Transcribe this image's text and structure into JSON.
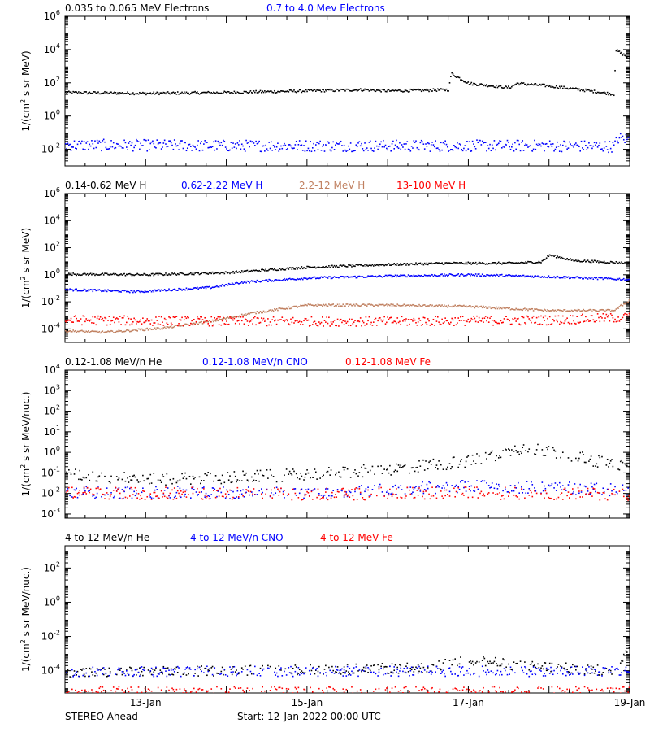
{
  "footer": {
    "left": "STEREO Ahead",
    "center": "Start: 12-Jan-2022 00:00 UTC"
  },
  "x_tick_labels": [
    "13-Jan",
    "15-Jan",
    "17-Jan",
    "19-Jan"
  ],
  "chart_data": [
    {
      "type": "scatter",
      "ylabel": "1/(cm^2 s sr MeV)",
      "log": true,
      "ylim_exp": [
        -3,
        6
      ],
      "yticks": [
        {
          "exp": -2,
          "label": "10^-2"
        },
        {
          "exp": 0,
          "label": "10^0"
        },
        {
          "exp": 2,
          "label": "10^2"
        },
        {
          "exp": 4,
          "label": "10^4"
        },
        {
          "exp": 6,
          "label": "10^6"
        }
      ],
      "xlim_days": [
        0,
        7
      ],
      "series": [
        {
          "name": "0.035 to 0.065 MeV Electrons",
          "color": "#000000",
          "points": [
            [
              0,
              1.45
            ],
            [
              1,
              1.4
            ],
            [
              2,
              1.45
            ],
            [
              3,
              1.55
            ],
            [
              3.7,
              1.62
            ],
            [
              4,
              1.55
            ],
            [
              4.6,
              1.6
            ],
            [
              4.75,
              1.62
            ],
            [
              4.78,
              2.6
            ],
            [
              5,
              2.0
            ],
            [
              5.5,
              1.75
            ],
            [
              5.6,
              2.0
            ],
            [
              6,
              1.85
            ],
            [
              6.5,
              1.55
            ],
            [
              6.8,
              1.35
            ],
            [
              6.82,
              4.0
            ],
            [
              7,
              3.5
            ]
          ]
        },
        {
          "name": "0.7 to 4.0 Mev Electrons",
          "color": "#0000ff",
          "points": [
            [
              0,
              -1.7
            ],
            [
              2,
              -1.75
            ],
            [
              4,
              -1.75
            ],
            [
              6,
              -1.75
            ],
            [
              6.8,
              -1.8
            ],
            [
              6.85,
              -1.3
            ],
            [
              7,
              -1.35
            ]
          ]
        }
      ]
    },
    {
      "type": "scatter",
      "ylabel": "1/(cm^2 s sr MeV)",
      "log": true,
      "ylim_exp": [
        -5,
        6
      ],
      "yticks": [
        {
          "exp": -4,
          "label": "10^-4"
        },
        {
          "exp": -2,
          "label": "10^-2"
        },
        {
          "exp": 0,
          "label": "10^0"
        },
        {
          "exp": 2,
          "label": "10^2"
        },
        {
          "exp": 4,
          "label": "10^4"
        },
        {
          "exp": 6,
          "label": "10^6"
        }
      ],
      "xlim_days": [
        0,
        7
      ],
      "series": [
        {
          "name": "0.14-0.62 MeV H",
          "color": "#000000",
          "points": [
            [
              0,
              0.1
            ],
            [
              1,
              0.05
            ],
            [
              2,
              0.2
            ],
            [
              2.5,
              0.4
            ],
            [
              3,
              0.6
            ],
            [
              4,
              0.8
            ],
            [
              4.7,
              0.9
            ],
            [
              5.5,
              0.9
            ],
            [
              5.9,
              1.0
            ],
            [
              6.0,
              1.5
            ],
            [
              6.3,
              1.1
            ],
            [
              7,
              0.9
            ]
          ]
        },
        {
          "name": "0.62-2.22 MeV H",
          "color": "#0000ff",
          "points": [
            [
              0,
              -1.05
            ],
            [
              0.9,
              -1.2
            ],
            [
              1.8,
              -0.9
            ],
            [
              2.2,
              -0.5
            ],
            [
              3,
              -0.2
            ],
            [
              4,
              -0.05
            ],
            [
              5,
              0.05
            ],
            [
              6,
              -0.1
            ],
            [
              7,
              -0.3
            ]
          ]
        },
        {
          "name": "2.2-12 MeV H",
          "color": "#c08060",
          "points": [
            [
              0,
              -4.1
            ],
            [
              0.5,
              -4.2
            ],
            [
              1.2,
              -3.9
            ],
            [
              1.8,
              -3.4
            ],
            [
              2.3,
              -2.8
            ],
            [
              3,
              -2.2
            ],
            [
              4,
              -2.2
            ],
            [
              5,
              -2.3
            ],
            [
              6,
              -2.6
            ],
            [
              6.8,
              -2.6
            ],
            [
              7,
              -1.8
            ]
          ]
        },
        {
          "name": "13-100 MeV H",
          "color": "#ff0000",
          "points": [
            [
              0,
              -3.3
            ],
            [
              2,
              -3.4
            ],
            [
              4,
              -3.4
            ],
            [
              6,
              -3.3
            ],
            [
              7,
              -3.1
            ]
          ]
        }
      ]
    },
    {
      "type": "scatter",
      "ylabel": "1/(cm^2 s sr MeV/nuc.)",
      "log": true,
      "ylim_exp": [
        -3.2,
        4
      ],
      "yticks": [
        {
          "exp": -3,
          "label": "10^-3"
        },
        {
          "exp": -2,
          "label": "10^-2"
        },
        {
          "exp": -1,
          "label": "10^-1"
        },
        {
          "exp": 0,
          "label": "10^0"
        },
        {
          "exp": 1,
          "label": "10^1"
        },
        {
          "exp": 2,
          "label": "10^2"
        },
        {
          "exp": 3,
          "label": "10^3"
        },
        {
          "exp": 4,
          "label": "10^4"
        }
      ],
      "xlim_days": [
        0,
        7
      ],
      "series": [
        {
          "name": "0.12-1.08 MeV/n He",
          "color": "#000000",
          "points": [
            [
              0,
              -1.05
            ],
            [
              1,
              -1.3
            ],
            [
              2,
              -1.2
            ],
            [
              3,
              -1.05
            ],
            [
              4,
              -0.8
            ],
            [
              5,
              -0.4
            ],
            [
              5.7,
              0.3
            ],
            [
              6.2,
              -0.1
            ],
            [
              7,
              -0.7
            ]
          ]
        },
        {
          "name": "0.12-1.08 MeV/n CNO",
          "color": "#0000ff",
          "points": [
            [
              0,
              -1.9
            ],
            [
              3,
              -1.95
            ],
            [
              5,
              -1.6
            ],
            [
              7,
              -1.8
            ]
          ]
        },
        {
          "name": "0.12-1.08 MeV Fe",
          "color": "#ff0000",
          "points": [
            [
              0,
              -1.95
            ],
            [
              3,
              -2.0
            ],
            [
              5,
              -1.95
            ],
            [
              7,
              -2.0
            ]
          ]
        }
      ]
    },
    {
      "type": "scatter",
      "ylabel": "1/(cm^2 s sr MeV/nuc.)",
      "log": true,
      "ylim_exp": [
        -5.3,
        3.3
      ],
      "yticks": [
        {
          "exp": -4,
          "label": "10^-4"
        },
        {
          "exp": -2,
          "label": "10^-2"
        },
        {
          "exp": 0,
          "label": "10^0"
        },
        {
          "exp": 2,
          "label": "10^2"
        }
      ],
      "xlim_days": [
        0,
        7
      ],
      "series": [
        {
          "name": "4 to 12 MeV/n He",
          "color": "#000000",
          "points": [
            [
              0,
              -4.1
            ],
            [
              3,
              -3.9
            ],
            [
              4.5,
              -3.8
            ],
            [
              5,
              -3.3
            ],
            [
              5.5,
              -3.6
            ],
            [
              6.5,
              -3.9
            ],
            [
              6.8,
              -4.0
            ],
            [
              7,
              -2.5
            ]
          ]
        },
        {
          "name": "4 to 12 MeV/n CNO",
          "color": "#0000ff",
          "points": [
            [
              0,
              -4.0
            ],
            [
              7,
              -4.0
            ]
          ]
        },
        {
          "name": "4 to 12 MeV Fe",
          "color": "#ff0000",
          "points": [
            [
              0,
              -5.2
            ],
            [
              7,
              -5.2
            ]
          ]
        }
      ]
    }
  ]
}
